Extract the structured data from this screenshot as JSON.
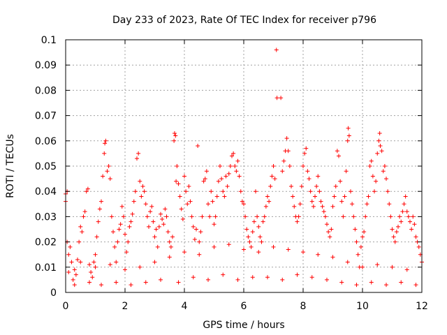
{
  "chart_data": {
    "type": "scatter",
    "title": "Day 233 of 2023, Rate Of TEC Index for receiver p796",
    "xlabel": "GPS time / hours",
    "ylabel": "ROTI / TECUs",
    "xlim": [
      0,
      12
    ],
    "ylim": [
      0,
      0.1
    ],
    "x_ticks": [
      0,
      2,
      4,
      6,
      8,
      10,
      12
    ],
    "x_tick_labels": [
      "0",
      "2",
      "4",
      "6",
      "8",
      "10",
      "12"
    ],
    "y_ticks": [
      0,
      0.01,
      0.02,
      0.03,
      0.04,
      0.05,
      0.06,
      0.07,
      0.08,
      0.09,
      0.1
    ],
    "y_tick_labels": [
      "0",
      "0.01",
      "0.02",
      "0.03",
      "0.04",
      "0.05",
      "0.06",
      "0.07",
      "0.08",
      "0.09",
      "0.1"
    ],
    "grid": true,
    "marker": "+",
    "color": "#ff0000",
    "series": [
      {
        "name": "ROTI",
        "points": [
          [
            0.0,
            0.039
          ],
          [
            0.0,
            0.036
          ],
          [
            0.05,
            0.04
          ],
          [
            0.05,
            0.02
          ],
          [
            0.1,
            0.015
          ],
          [
            0.1,
            0.008
          ],
          [
            0.15,
            0.018
          ],
          [
            0.2,
            0.012
          ],
          [
            0.25,
            0.005
          ],
          [
            0.3,
            0.009
          ],
          [
            0.35,
            0.007
          ],
          [
            0.4,
            0.013
          ],
          [
            0.45,
            0.02
          ],
          [
            0.5,
            0.026
          ],
          [
            0.55,
            0.024
          ],
          [
            0.6,
            0.03
          ],
          [
            0.65,
            0.032
          ],
          [
            0.7,
            0.04
          ],
          [
            0.75,
            0.041
          ],
          [
            0.8,
            0.011
          ],
          [
            0.85,
            0.008
          ],
          [
            0.9,
            0.006
          ],
          [
            0.95,
            0.012
          ],
          [
            1.0,
            0.015
          ],
          [
            1.05,
            0.022
          ],
          [
            1.1,
            0.028
          ],
          [
            1.15,
            0.033
          ],
          [
            1.2,
            0.036
          ],
          [
            1.25,
            0.046
          ],
          [
            1.3,
            0.055
          ],
          [
            1.32,
            0.059
          ],
          [
            1.35,
            0.06
          ],
          [
            1.4,
            0.048
          ],
          [
            1.45,
            0.05
          ],
          [
            1.5,
            0.045
          ],
          [
            1.55,
            0.03
          ],
          [
            1.6,
            0.024
          ],
          [
            1.65,
            0.018
          ],
          [
            1.7,
            0.012
          ],
          [
            1.75,
            0.02
          ],
          [
            1.8,
            0.025
          ],
          [
            1.85,
            0.027
          ],
          [
            1.9,
            0.034
          ],
          [
            1.95,
            0.03
          ],
          [
            2.0,
            0.023
          ],
          [
            2.05,
            0.016
          ],
          [
            2.1,
            0.02
          ],
          [
            2.15,
            0.026
          ],
          [
            2.2,
            0.028
          ],
          [
            2.25,
            0.031
          ],
          [
            2.3,
            0.036
          ],
          [
            2.35,
            0.04
          ],
          [
            2.4,
            0.053
          ],
          [
            2.45,
            0.055
          ],
          [
            2.5,
            0.044
          ],
          [
            2.55,
            0.038
          ],
          [
            2.6,
            0.042
          ],
          [
            2.65,
            0.04
          ],
          [
            2.7,
            0.035
          ],
          [
            2.75,
            0.03
          ],
          [
            2.8,
            0.026
          ],
          [
            2.85,
            0.032
          ],
          [
            2.9,
            0.034
          ],
          [
            2.95,
            0.028
          ],
          [
            3.0,
            0.022
          ],
          [
            3.05,
            0.025
          ],
          [
            3.1,
            0.018
          ],
          [
            3.15,
            0.026
          ],
          [
            3.2,
            0.031
          ],
          [
            3.25,
            0.029
          ],
          [
            3.3,
            0.027
          ],
          [
            3.35,
            0.033
          ],
          [
            3.4,
            0.03
          ],
          [
            3.45,
            0.024
          ],
          [
            3.5,
            0.02
          ],
          [
            3.55,
            0.018
          ],
          [
            3.6,
            0.022
          ],
          [
            3.65,
            0.06
          ],
          [
            3.67,
            0.063
          ],
          [
            3.7,
            0.062
          ],
          [
            3.72,
            0.044
          ],
          [
            3.75,
            0.05
          ],
          [
            3.8,
            0.043
          ],
          [
            3.85,
            0.038
          ],
          [
            3.9,
            0.033
          ],
          [
            3.95,
            0.029
          ],
          [
            4.0,
            0.046
          ],
          [
            4.05,
            0.04
          ],
          [
            4.1,
            0.035
          ],
          [
            4.15,
            0.042
          ],
          [
            4.2,
            0.036
          ],
          [
            4.25,
            0.03
          ],
          [
            4.3,
            0.026
          ],
          [
            4.35,
            0.021
          ],
          [
            4.4,
            0.025
          ],
          [
            4.45,
            0.058
          ],
          [
            4.5,
            0.02
          ],
          [
            4.55,
            0.024
          ],
          [
            4.6,
            0.03
          ],
          [
            4.65,
            0.044
          ],
          [
            4.7,
            0.045
          ],
          [
            4.75,
            0.048
          ],
          [
            4.8,
            0.035
          ],
          [
            4.85,
            0.03
          ],
          [
            4.9,
            0.04
          ],
          [
            4.95,
            0.036
          ],
          [
            5.0,
            0.027
          ],
          [
            5.05,
            0.03
          ],
          [
            5.1,
            0.038
          ],
          [
            5.15,
            0.044
          ],
          [
            5.2,
            0.05
          ],
          [
            5.25,
            0.045
          ],
          [
            5.3,
            0.04
          ],
          [
            5.35,
            0.038
          ],
          [
            5.4,
            0.046
          ],
          [
            5.45,
            0.042
          ],
          [
            5.5,
            0.047
          ],
          [
            5.55,
            0.05
          ],
          [
            5.6,
            0.054
          ],
          [
            5.65,
            0.055
          ],
          [
            5.7,
            0.05
          ],
          [
            5.75,
            0.048
          ],
          [
            5.8,
            0.052
          ],
          [
            5.85,
            0.046
          ],
          [
            5.9,
            0.04
          ],
          [
            5.95,
            0.036
          ],
          [
            6.0,
            0.035
          ],
          [
            6.05,
            0.03
          ],
          [
            6.1,
            0.025
          ],
          [
            6.15,
            0.022
          ],
          [
            6.2,
            0.02
          ],
          [
            6.25,
            0.018
          ],
          [
            6.3,
            0.024
          ],
          [
            6.35,
            0.028
          ],
          [
            6.4,
            0.04
          ],
          [
            6.45,
            0.03
          ],
          [
            6.5,
            0.026
          ],
          [
            6.55,
            0.022
          ],
          [
            6.6,
            0.02
          ],
          [
            6.65,
            0.028
          ],
          [
            6.7,
            0.03
          ],
          [
            6.75,
            0.034
          ],
          [
            6.8,
            0.038
          ],
          [
            6.85,
            0.036
          ],
          [
            6.9,
            0.042
          ],
          [
            6.95,
            0.046
          ],
          [
            7.0,
            0.05
          ],
          [
            7.05,
            0.045
          ],
          [
            7.1,
            0.096
          ],
          [
            7.12,
            0.077
          ],
          [
            7.25,
            0.077
          ],
          [
            7.3,
            0.048
          ],
          [
            7.35,
            0.052
          ],
          [
            7.4,
            0.056
          ],
          [
            7.45,
            0.061
          ],
          [
            7.5,
            0.056
          ],
          [
            7.55,
            0.05
          ],
          [
            7.6,
            0.042
          ],
          [
            7.65,
            0.038
          ],
          [
            7.7,
            0.034
          ],
          [
            7.75,
            0.03
          ],
          [
            7.8,
            0.028
          ],
          [
            7.85,
            0.03
          ],
          [
            7.9,
            0.035
          ],
          [
            7.95,
            0.042
          ],
          [
            8.0,
            0.05
          ],
          [
            8.05,
            0.055
          ],
          [
            8.1,
            0.057
          ],
          [
            8.15,
            0.048
          ],
          [
            8.2,
            0.045
          ],
          [
            8.25,
            0.04
          ],
          [
            8.3,
            0.036
          ],
          [
            8.35,
            0.034
          ],
          [
            8.4,
            0.038
          ],
          [
            8.45,
            0.042
          ],
          [
            8.5,
            0.046
          ],
          [
            8.55,
            0.04
          ],
          [
            8.6,
            0.036
          ],
          [
            8.65,
            0.034
          ],
          [
            8.7,
            0.032
          ],
          [
            8.75,
            0.03
          ],
          [
            8.8,
            0.027
          ],
          [
            8.85,
            0.024
          ],
          [
            8.9,
            0.022
          ],
          [
            8.95,
            0.025
          ],
          [
            9.0,
            0.034
          ],
          [
            9.05,
            0.038
          ],
          [
            9.1,
            0.042
          ],
          [
            9.15,
            0.056
          ],
          [
            9.2,
            0.054
          ],
          [
            9.25,
            0.044
          ],
          [
            9.3,
            0.036
          ],
          [
            9.35,
            0.03
          ],
          [
            9.4,
            0.038
          ],
          [
            9.45,
            0.048
          ],
          [
            9.5,
            0.06
          ],
          [
            9.52,
            0.065
          ],
          [
            9.55,
            0.062
          ],
          [
            9.6,
            0.04
          ],
          [
            9.65,
            0.035
          ],
          [
            9.7,
            0.03
          ],
          [
            9.75,
            0.025
          ],
          [
            9.8,
            0.02
          ],
          [
            9.85,
            0.015
          ],
          [
            9.9,
            0.01
          ],
          [
            9.95,
            0.018
          ],
          [
            10.0,
            0.022
          ],
          [
            10.05,
            0.024
          ],
          [
            10.1,
            0.03
          ],
          [
            10.15,
            0.035
          ],
          [
            10.2,
            0.038
          ],
          [
            10.25,
            0.05
          ],
          [
            10.3,
            0.052
          ],
          [
            10.35,
            0.046
          ],
          [
            10.4,
            0.04
          ],
          [
            10.45,
            0.044
          ],
          [
            10.5,
            0.055
          ],
          [
            10.55,
            0.06
          ],
          [
            10.58,
            0.063
          ],
          [
            10.6,
            0.058
          ],
          [
            10.65,
            0.056
          ],
          [
            10.7,
            0.048
          ],
          [
            10.75,
            0.05
          ],
          [
            10.8,
            0.045
          ],
          [
            10.85,
            0.04
          ],
          [
            10.9,
            0.035
          ],
          [
            10.95,
            0.03
          ],
          [
            11.0,
            0.025
          ],
          [
            11.05,
            0.022
          ],
          [
            11.1,
            0.02
          ],
          [
            11.15,
            0.024
          ],
          [
            11.2,
            0.026
          ],
          [
            11.25,
            0.03
          ],
          [
            11.3,
            0.028
          ],
          [
            11.35,
            0.032
          ],
          [
            11.4,
            0.035
          ],
          [
            11.45,
            0.038
          ],
          [
            11.5,
            0.032
          ],
          [
            11.55,
            0.03
          ],
          [
            11.6,
            0.028
          ],
          [
            11.65,
            0.025
          ],
          [
            11.7,
            0.03
          ],
          [
            11.75,
            0.027
          ],
          [
            11.8,
            0.022
          ],
          [
            11.85,
            0.02
          ],
          [
            11.9,
            0.018
          ],
          [
            11.95,
            0.015
          ],
          [
            12.0,
            0.012
          ],
          [
            0.3,
            0.003
          ],
          [
            0.8,
            0.004
          ],
          [
            1.2,
            0.003
          ],
          [
            1.7,
            0.004
          ],
          [
            2.2,
            0.003
          ],
          [
            2.7,
            0.004
          ],
          [
            3.2,
            0.005
          ],
          [
            3.8,
            0.004
          ],
          [
            4.3,
            0.006
          ],
          [
            4.8,
            0.005
          ],
          [
            5.3,
            0.007
          ],
          [
            5.8,
            0.005
          ],
          [
            6.3,
            0.006
          ],
          [
            6.8,
            0.006
          ],
          [
            7.3,
            0.005
          ],
          [
            7.8,
            0.007
          ],
          [
            8.3,
            0.006
          ],
          [
            8.8,
            0.005
          ],
          [
            9.3,
            0.004
          ],
          [
            9.8,
            0.003
          ],
          [
            10.3,
            0.004
          ],
          [
            10.8,
            0.003
          ],
          [
            11.3,
            0.004
          ],
          [
            11.8,
            0.003
          ],
          [
            0.5,
            0.012
          ],
          [
            1.0,
            0.01
          ],
          [
            1.5,
            0.011
          ],
          [
            2.0,
            0.009
          ],
          [
            2.5,
            0.01
          ],
          [
            3.0,
            0.012
          ],
          [
            3.5,
            0.014
          ],
          [
            4.0,
            0.016
          ],
          [
            4.5,
            0.015
          ],
          [
            5.0,
            0.018
          ],
          [
            5.5,
            0.019
          ],
          [
            6.0,
            0.017
          ],
          [
            6.5,
            0.016
          ],
          [
            7.0,
            0.018
          ],
          [
            7.5,
            0.017
          ],
          [
            8.0,
            0.016
          ],
          [
            8.5,
            0.015
          ],
          [
            9.0,
            0.014
          ],
          [
            9.5,
            0.012
          ],
          [
            10.0,
            0.01
          ],
          [
            10.5,
            0.011
          ],
          [
            11.0,
            0.01
          ],
          [
            11.5,
            0.009
          ]
        ]
      }
    ]
  }
}
